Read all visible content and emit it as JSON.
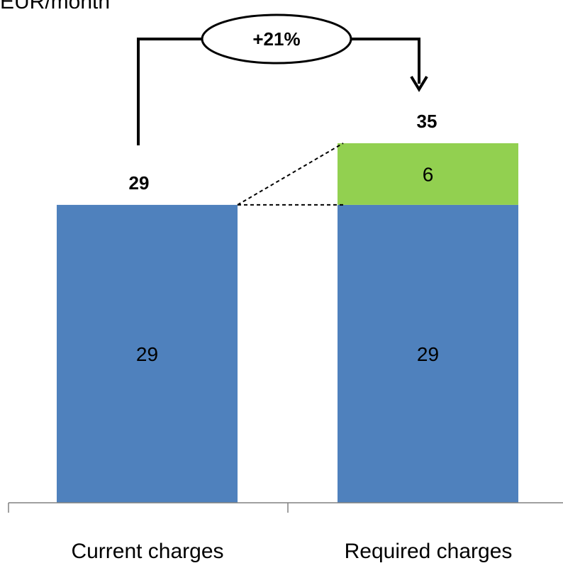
{
  "chart_data": {
    "type": "bar",
    "stacked": true,
    "unit_label": "EUR/month",
    "categories": [
      "Current charges",
      "Required charges"
    ],
    "series": [
      {
        "values": [
          29,
          29
        ],
        "color": "#4f81bd"
      },
      {
        "values": [
          0,
          6
        ],
        "color": "#92d050"
      }
    ],
    "totals": [
      29,
      35
    ],
    "annotation": {
      "label": "+21%",
      "from_category": 0,
      "to_category": 1
    },
    "ylim": [
      0,
      35
    ],
    "grid": false,
    "legend": "none",
    "xlabel": "",
    "ylabel": ""
  }
}
